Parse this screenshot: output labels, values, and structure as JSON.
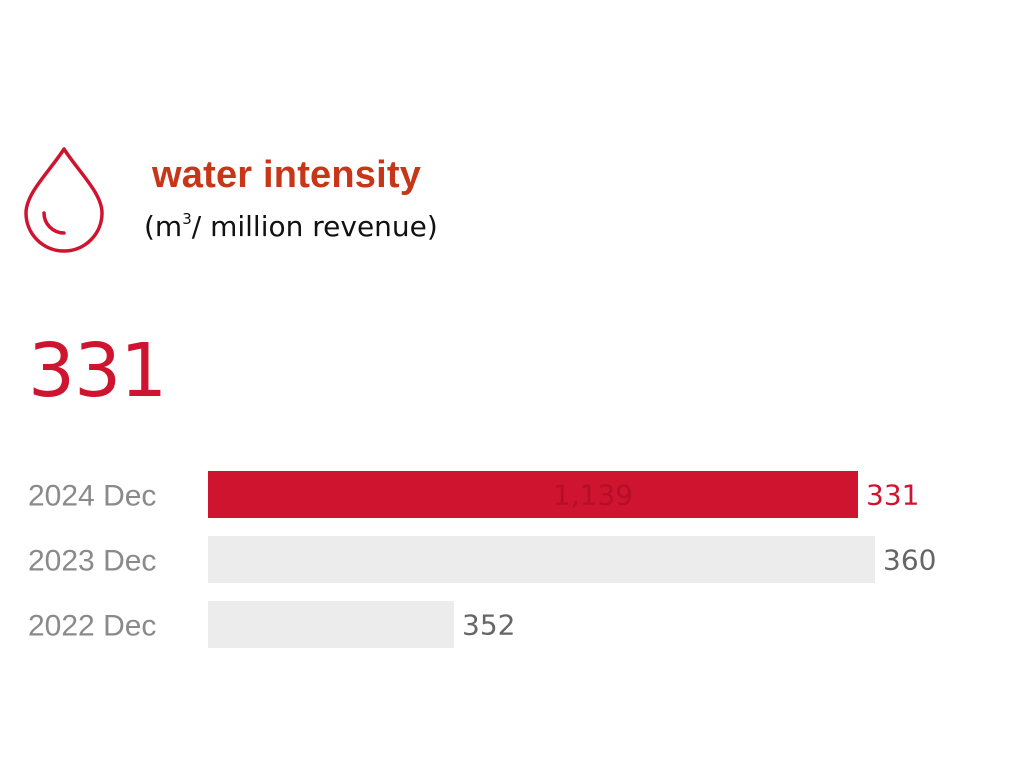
{
  "header": {
    "icon": "water-drop-icon",
    "title": "water intensity",
    "subtitle_prefix": "(m",
    "subtitle_sup": "3",
    "subtitle_suffix": "/ million revenue)"
  },
  "kpi": {
    "value": "331"
  },
  "colors": {
    "accent": "#cf1430",
    "title": "#c8361a",
    "bar_inactive": "#ececec",
    "label_gray": "#8a8a8a",
    "value_gray": "#666666"
  },
  "chart_data": {
    "type": "bar",
    "orientation": "horizontal",
    "categories": [
      "2024 Dec",
      "2023 Dec",
      "2022 Dec"
    ],
    "values": [
      331,
      360,
      352
    ],
    "value_labels": [
      "331",
      "360",
      "352"
    ],
    "highlight_index": 0,
    "faded_label": "1,139"
  }
}
